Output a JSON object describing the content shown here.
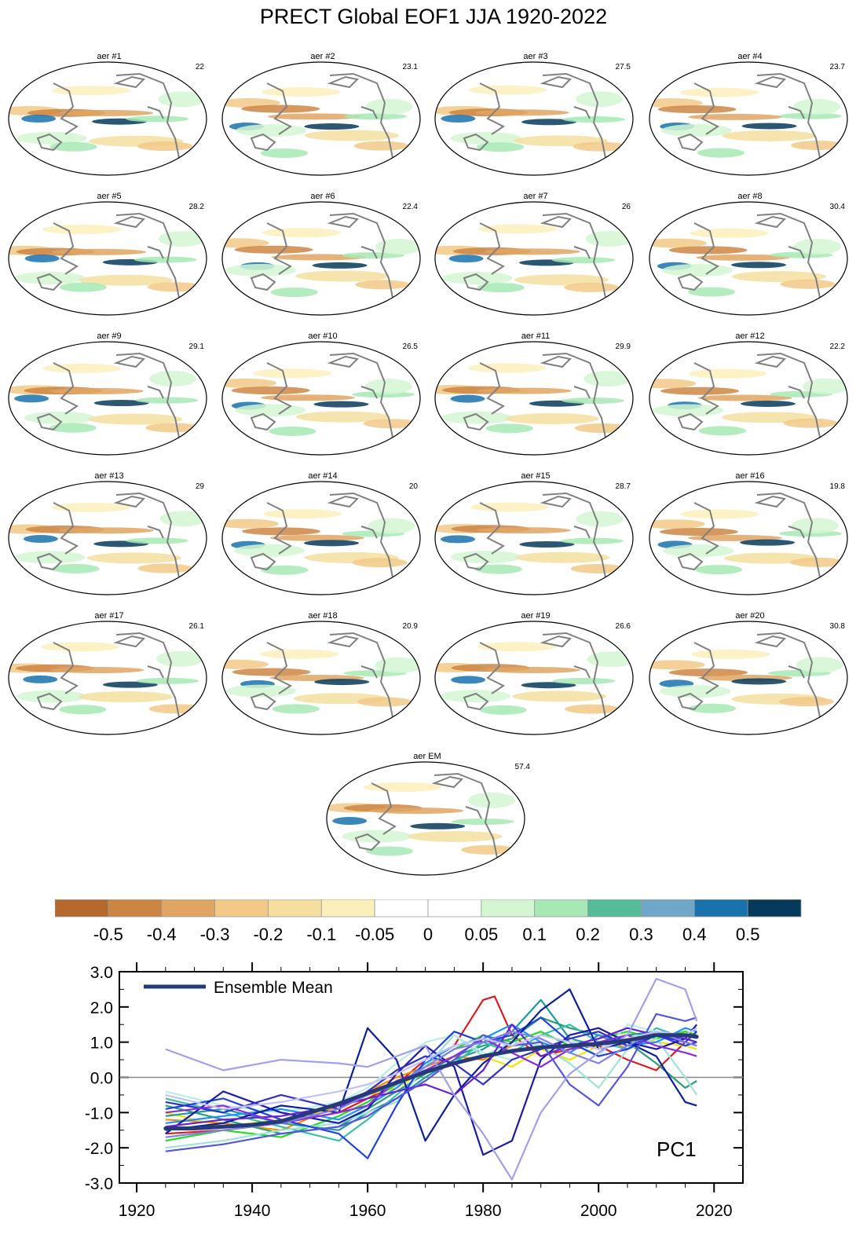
{
  "title": "PRECT Global EOF1 JJA 1920-2022",
  "panels": [
    {
      "label": "aer #1",
      "value": "22"
    },
    {
      "label": "aer #2",
      "value": "23.1"
    },
    {
      "label": "aer #3",
      "value": "27.5"
    },
    {
      "label": "aer #4",
      "value": "23.7"
    },
    {
      "label": "aer #5",
      "value": "28.2"
    },
    {
      "label": "aer #6",
      "value": "22.4"
    },
    {
      "label": "aer #7",
      "value": "26"
    },
    {
      "label": "aer #8",
      "value": "30.4"
    },
    {
      "label": "aer #9",
      "value": "29.1"
    },
    {
      "label": "aer #10",
      "value": "26.5"
    },
    {
      "label": "aer #11",
      "value": "29.9"
    },
    {
      "label": "aer #12",
      "value": "22.2"
    },
    {
      "label": "aer #13",
      "value": "29"
    },
    {
      "label": "aer #14",
      "value": "20"
    },
    {
      "label": "aer #15",
      "value": "28.7"
    },
    {
      "label": "aer #16",
      "value": "19.8"
    },
    {
      "label": "aer #17",
      "value": "26.1"
    },
    {
      "label": "aer #18",
      "value": "20.9"
    },
    {
      "label": "aer #19",
      "value": "26.6"
    },
    {
      "label": "aer #20",
      "value": "30.8"
    },
    {
      "label": "aer EM",
      "value": "57.4"
    }
  ],
  "colorbar": {
    "colors": [
      "#b5692c",
      "#cc8644",
      "#e0a463",
      "#f2c987",
      "#f5dfa0",
      "#fbf0bc",
      "#ffffff",
      "#ffffff",
      "#d4f7d2",
      "#a6e9b4",
      "#55bb99",
      "#6fa8c7",
      "#1a72ad",
      "#063a5a"
    ],
    "labels": [
      "-0.5",
      "-0.4",
      "-0.3",
      "-0.2",
      "-0.1",
      "-0.05",
      "0",
      "0.05",
      "0.1",
      "0.2",
      "0.3",
      "0.4",
      "0.5"
    ]
  },
  "chart_data": {
    "type": "line",
    "title": "",
    "annotation": "PC1",
    "legend": "Ensemble Mean",
    "legend_position": "top-left",
    "xlim": [
      1917,
      2025
    ],
    "ylim": [
      -3.0,
      3.0
    ],
    "x_ticks": [
      "1920",
      "1940",
      "1960",
      "1980",
      "2000",
      "2020"
    ],
    "y_ticks": [
      "3.0",
      "2.0",
      "1.0",
      "0.0",
      "-1.0",
      "-2.0",
      "-3.0"
    ],
    "x_start": 1925,
    "x_end": 2017,
    "zero_line": true,
    "ensemble_mean": {
      "name": "Ensemble Mean",
      "color": "#263a7a",
      "x": [
        1925,
        1930,
        1935,
        1940,
        1945,
        1950,
        1955,
        1960,
        1965,
        1970,
        1975,
        1980,
        1985,
        1990,
        1995,
        2000,
        2005,
        2010,
        2015,
        2017
      ],
      "values": [
        -1.45,
        -1.45,
        -1.4,
        -1.35,
        -1.25,
        -1.0,
        -0.75,
        -0.45,
        -0.15,
        0.15,
        0.4,
        0.6,
        0.75,
        0.85,
        0.9,
        0.95,
        1.05,
        1.2,
        1.2,
        1.15
      ]
    },
    "members": [
      {
        "name": "aer #1",
        "color": "#e01b1b",
        "x": [
          1925,
          1935,
          1945,
          1955,
          1960,
          1965,
          1970,
          1975,
          1980,
          1982,
          1985,
          1990,
          1995,
          2000,
          2005,
          2010,
          2015,
          2017
        ],
        "values": [
          -1.6,
          -1.5,
          -1.3,
          -1.0,
          -0.6,
          -0.2,
          0.5,
          0.9,
          2.2,
          2.3,
          1.2,
          0.6,
          0.8,
          0.9,
          0.5,
          0.2,
          1.0,
          0.9
        ]
      },
      {
        "name": "aer #2",
        "color": "#ff8c00",
        "x": [
          1925,
          1935,
          1945,
          1955,
          1960,
          1965,
          1970,
          1975,
          1980,
          1985,
          1990,
          1995,
          2000,
          2005,
          2010,
          2015,
          2017
        ],
        "values": [
          -1.2,
          -1.3,
          -1.5,
          -0.8,
          -0.4,
          0.0,
          0.3,
          0.6,
          0.5,
          0.9,
          1.0,
          0.7,
          1.2,
          0.8,
          1.1,
          1.3,
          1.2
        ]
      },
      {
        "name": "aer #3",
        "color": "#f2e600",
        "x": [
          1925,
          1935,
          1945,
          1955,
          1960,
          1965,
          1970,
          1975,
          1980,
          1985,
          1990,
          1995,
          2000,
          2005,
          2010,
          2015,
          2017
        ],
        "values": [
          -1.0,
          -1.4,
          -1.2,
          -0.9,
          -0.5,
          -0.3,
          0.2,
          0.4,
          0.6,
          0.3,
          0.8,
          0.5,
          0.9,
          1.2,
          1.0,
          0.9,
          0.8
        ]
      },
      {
        "name": "aer #4",
        "color": "#22dd22",
        "x": [
          1925,
          1935,
          1945,
          1955,
          1960,
          1965,
          1970,
          1975,
          1980,
          1985,
          1990,
          1995,
          2000,
          2005,
          2010,
          2015,
          2017
        ],
        "values": [
          -1.8,
          -1.5,
          -1.7,
          -1.1,
          -0.7,
          -0.2,
          0.3,
          0.8,
          1.2,
          1.0,
          1.3,
          0.9,
          1.1,
          1.3,
          1.1,
          1.3,
          1.2
        ]
      },
      {
        "name": "aer #5",
        "color": "#2ca07a",
        "x": [
          1925,
          1935,
          1945,
          1955,
          1960,
          1965,
          1970,
          1975,
          1980,
          1985,
          1990,
          1995,
          2000,
          2005,
          2010,
          2015,
          2017
        ],
        "values": [
          -0.8,
          -1.2,
          -1.6,
          -1.4,
          -0.9,
          -0.4,
          0.1,
          0.6,
          0.9,
          1.1,
          1.7,
          1.4,
          1.2,
          1.0,
          0.4,
          -0.3,
          -0.1
        ]
      },
      {
        "name": "aer #6",
        "color": "#1c9c9c",
        "x": [
          1925,
          1935,
          1945,
          1955,
          1960,
          1965,
          1970,
          1975,
          1980,
          1985,
          1990,
          1995,
          2000,
          2005,
          2010,
          2015,
          2017
        ],
        "values": [
          -1.1,
          -0.9,
          -1.3,
          -1.5,
          -1.0,
          -0.6,
          0.0,
          0.5,
          0.8,
          1.3,
          2.2,
          1.1,
          0.9,
          1.2,
          1.3,
          1.0,
          0.9
        ]
      },
      {
        "name": "aer #7",
        "color": "#3bbfad",
        "x": [
          1925,
          1935,
          1945,
          1955,
          1960,
          1965,
          1970,
          1975,
          1980,
          1985,
          1990,
          1995,
          2000,
          2005,
          2010,
          2015,
          2017
        ],
        "values": [
          -0.6,
          -1.0,
          -1.4,
          -1.8,
          -1.2,
          -0.5,
          0.2,
          0.4,
          1.0,
          0.7,
          1.2,
          1.5,
          1.0,
          0.8,
          1.4,
          1.1,
          1.0
        ]
      },
      {
        "name": "aer #8",
        "color": "#9fe3d8",
        "x": [
          1925,
          1935,
          1945,
          1955,
          1960,
          1965,
          1970,
          1975,
          1980,
          1985,
          1990,
          1995,
          2000,
          2005,
          2010,
          2015,
          2017
        ],
        "values": [
          -2.0,
          -1.8,
          -1.5,
          -1.3,
          -1.0,
          -0.7,
          0.3,
          1.2,
          0.6,
          1.0,
          0.9,
          0.4,
          -0.3,
          0.8,
          1.1,
          0.0,
          -0.5
        ]
      },
      {
        "name": "aer #9",
        "color": "#b7efe6",
        "x": [
          1925,
          1935,
          1945,
          1955,
          1960,
          1965,
          1970,
          1975,
          1980,
          1985,
          1990,
          1995,
          2000,
          2005,
          2010,
          2015,
          2017
        ],
        "values": [
          -0.4,
          -0.8,
          -1.0,
          -0.7,
          -0.3,
          0.4,
          1.0,
          1.2,
          0.7,
          0.5,
          0.8,
          1.1,
          0.6,
          1.5,
          1.3,
          1.2,
          1.1
        ]
      },
      {
        "name": "aer #10",
        "color": "#1e90ff",
        "x": [
          1925,
          1935,
          1945,
          1955,
          1960,
          1965,
          1970,
          1975,
          1980,
          1985,
          1990,
          1995,
          2000,
          2005,
          2010,
          2015,
          2017
        ],
        "values": [
          -1.3,
          -1.1,
          -0.9,
          -1.2,
          -0.8,
          -0.3,
          0.4,
          0.9,
          1.1,
          1.5,
          1.0,
          0.7,
          1.2,
          0.9,
          1.0,
          1.4,
          1.3
        ]
      },
      {
        "name": "aer #11",
        "color": "#2040e0",
        "x": [
          1925,
          1935,
          1945,
          1955,
          1960,
          1965,
          1970,
          1975,
          1980,
          1985,
          1990,
          1995,
          2000,
          2005,
          2010,
          2015,
          2017
        ],
        "values": [
          -0.9,
          -0.6,
          -1.2,
          -1.6,
          -2.3,
          -0.8,
          0.5,
          1.3,
          1.0,
          1.2,
          1.7,
          1.0,
          0.6,
          0.8,
          1.2,
          0.9,
          1.0
        ]
      },
      {
        "name": "aer #12",
        "color": "#0b1f9e",
        "x": [
          1925,
          1935,
          1945,
          1955,
          1960,
          1965,
          1970,
          1975,
          1980,
          1985,
          1990,
          1995,
          2000,
          2005,
          2010,
          2015,
          2017
        ],
        "values": [
          -1.5,
          -1.3,
          -0.8,
          -1.0,
          1.4,
          0.5,
          -1.8,
          -0.5,
          0.4,
          1.0,
          1.9,
          2.5,
          0.8,
          1.0,
          0.6,
          -0.7,
          -0.8
        ]
      },
      {
        "name": "aer #13",
        "color": "#1a1aa8",
        "x": [
          1925,
          1935,
          1945,
          1955,
          1960,
          1965,
          1970,
          1975,
          1980,
          1985,
          1990,
          1995,
          2000,
          2005,
          2010,
          2015,
          2017
        ],
        "values": [
          -1.6,
          -0.4,
          -1.0,
          -1.3,
          -0.9,
          0.1,
          0.9,
          0.3,
          -2.2,
          -1.8,
          0.5,
          1.2,
          1.4,
          1.0,
          0.8,
          1.1,
          1.5
        ]
      },
      {
        "name": "aer #14",
        "color": "#3030c8",
        "x": [
          1925,
          1935,
          1945,
          1955,
          1960,
          1965,
          1970,
          1975,
          1980,
          1985,
          1990,
          1995,
          2000,
          2005,
          2010,
          2015,
          2017
        ],
        "values": [
          -0.7,
          -1.0,
          -0.5,
          -0.9,
          -0.4,
          0.2,
          0.6,
          0.4,
          -0.2,
          0.5,
          0.8,
          1.1,
          1.3,
          0.9,
          1.2,
          1.0,
          1.3
        ]
      },
      {
        "name": "aer #15",
        "color": "#6a1fd6",
        "x": [
          1925,
          1935,
          1945,
          1955,
          1960,
          1965,
          1970,
          1975,
          1980,
          1985,
          1990,
          1995,
          2000,
          2005,
          2010,
          2015,
          2017
        ],
        "values": [
          -1.4,
          -1.2,
          -1.1,
          -0.8,
          -0.6,
          -0.4,
          -0.2,
          -0.5,
          0.2,
          1.5,
          0.6,
          0.9,
          1.1,
          1.4,
          1.2,
          1.1,
          1.0
        ]
      },
      {
        "name": "aer #16",
        "color": "#8a2be2",
        "x": [
          1925,
          1935,
          1945,
          1955,
          1960,
          1965,
          1970,
          1975,
          1980,
          1985,
          1990,
          1995,
          2000,
          2005,
          2010,
          2015,
          2017
        ],
        "values": [
          -1.0,
          -0.8,
          -1.3,
          -1.0,
          -0.8,
          -0.1,
          0.2,
          0.6,
          1.1,
          0.7,
          0.3,
          0.8,
          1.0,
          1.2,
          0.9,
          0.7,
          0.6
        ]
      },
      {
        "name": "aer #17",
        "color": "#5555e0",
        "x": [
          1925,
          1935,
          1945,
          1955,
          1960,
          1965,
          1970,
          1975,
          1980,
          1985,
          1990,
          1995,
          2000,
          2005,
          2010,
          2015,
          2017
        ],
        "values": [
          -2.1,
          -1.9,
          -1.6,
          -1.4,
          -1.1,
          -0.6,
          -0.1,
          0.5,
          1.2,
          0.9,
          1.0,
          -0.2,
          -0.8,
          0.3,
          1.8,
          1.6,
          1.7
        ]
      },
      {
        "name": "aer #18",
        "color": "#8080e8",
        "x": [
          1925,
          1935,
          1945,
          1955,
          1960,
          1965,
          1970,
          1975,
          1980,
          1985,
          1990,
          1995,
          2000,
          2005,
          2010,
          2015,
          2017
        ],
        "values": [
          -1.7,
          -1.5,
          -1.3,
          -0.9,
          -0.5,
          -0.2,
          0.3,
          0.8,
          1.0,
          1.3,
          1.1,
          0.7,
          0.4,
          0.9,
          1.3,
          1.0,
          0.9
        ]
      },
      {
        "name": "aer #19",
        "color": "#a0a0ef",
        "x": [
          1925,
          1935,
          1945,
          1955,
          1960,
          1965,
          1970,
          1975,
          1980,
          1985,
          1990,
          1995,
          2000,
          2005,
          2010,
          2015,
          2017
        ],
        "values": [
          0.8,
          0.2,
          0.5,
          0.4,
          0.3,
          0.6,
          0.9,
          -0.5,
          -1.6,
          -2.9,
          -1.0,
          0.1,
          0.7,
          1.2,
          2.8,
          2.5,
          1.6
        ]
      },
      {
        "name": "aer #20",
        "color": "#c2c2f5",
        "x": [
          1925,
          1935,
          1945,
          1955,
          1960,
          1965,
          1970,
          1975,
          1980,
          1985,
          1990,
          1995,
          2000,
          2005,
          2010,
          2015,
          2017
        ],
        "values": [
          -0.5,
          -0.9,
          -0.7,
          -0.4,
          -0.2,
          0.1,
          0.5,
          0.9,
          1.1,
          0.9,
          1.2,
          1.0,
          0.8,
          1.1,
          1.3,
          1.2,
          1.4
        ]
      }
    ]
  }
}
